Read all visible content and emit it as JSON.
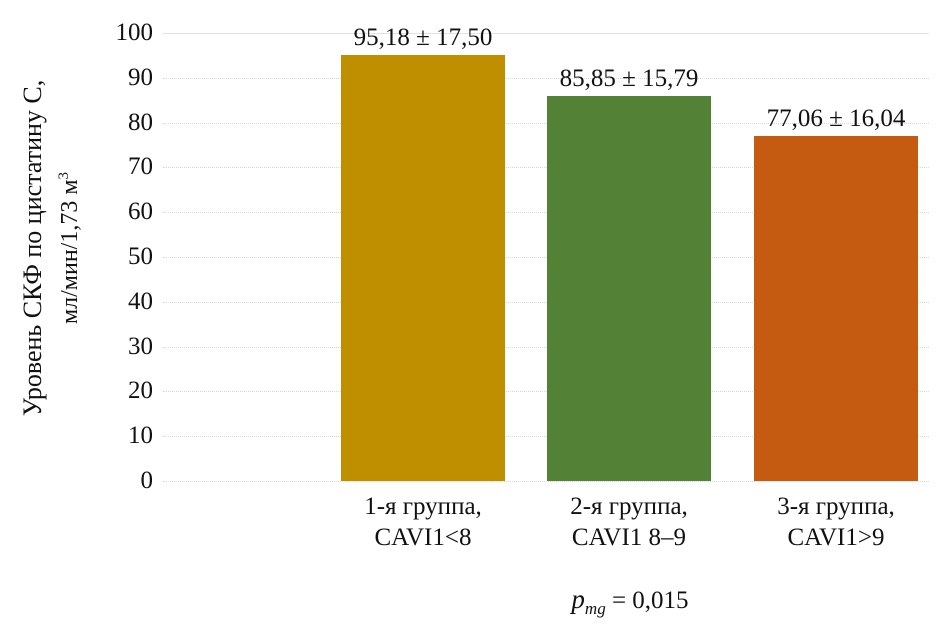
{
  "chart_data": {
    "type": "bar",
    "title": "",
    "ylabel": "Уровень СКФ по цистатину С, мл/мин/1,73 м³",
    "ylabel_line1": "Уровень СКФ по цистатину С,",
    "ylabel_line2_prefix": "мл/мин/1,73 м",
    "ylabel_line2_sup": "3",
    "xlabel": "",
    "ylim": [
      0,
      100
    ],
    "ytick_step": 10,
    "yticks": [
      100,
      90,
      80,
      70,
      60,
      50,
      40,
      30,
      20,
      10,
      0
    ],
    "grid": "horizontal-dotted",
    "legend": "none",
    "categories": [
      [
        "1-я группа,",
        "CAVI1<8"
      ],
      [
        "2-я группа,",
        "CAVI1 8–9"
      ],
      [
        "3-я группа,",
        "CAVI1>9"
      ]
    ],
    "values": [
      95.18,
      85.85,
      77.06
    ],
    "errors": [
      17.5,
      15.79,
      16.04
    ],
    "value_labels": [
      "95,18 ± 17,50",
      "85,85 ± 15,79",
      "77,06 ± 16,04"
    ],
    "bar_colors": [
      "#BF8F00",
      "#538135",
      "#C55A11"
    ],
    "annotation": {
      "p_symbol": "p",
      "p_subscript": "mg",
      "p_value_text": " = 0,015"
    }
  },
  "colors": {
    "background": "#ffffff",
    "gridline": "#d9d9d9",
    "text": "#111111",
    "bar_gold": "#BF8F00",
    "bar_green": "#538135",
    "bar_orange": "#C55A11"
  }
}
